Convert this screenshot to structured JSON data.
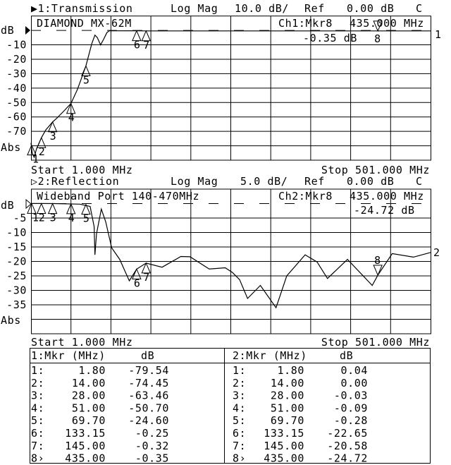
{
  "channel1": {
    "header": {
      "channel": "▶1:Transmission",
      "format": "Log Mag",
      "scale": "10.0 dB/",
      "ref_label": "Ref",
      "ref_value": "0.00 dB",
      "cal": "C"
    },
    "title": "DIAMOND MX-62M",
    "marker_readout": {
      "label": "Ch1:Mkr8",
      "freq": "435.000 MHz",
      "value": "-0.35 dB"
    },
    "y_unit": "dB",
    "y_ticks": [
      "-10",
      "-20",
      "-30",
      "-40",
      "-50",
      "-60",
      "-70"
    ],
    "y_bottom": "Abs",
    "start": "Start 1.000 MHz",
    "stop": "Stop 501.000 MHz",
    "trace_label": "1"
  },
  "channel2": {
    "header": {
      "channel": "▷2:Reflection",
      "format": "Log Mag",
      "scale": "5.0 dB/",
      "ref_label": "Ref",
      "ref_value": "0.00 dB",
      "cal": "C"
    },
    "title": "Wideband Port 140-470MHz",
    "marker_readout": {
      "label": "Ch2:Mkr8",
      "freq": "435.000 MHz",
      "value": "-24.72 dB"
    },
    "y_unit": "dB",
    "y_ticks": [
      "-5",
      "-10",
      "-15",
      "-20",
      "-25",
      "-30",
      "-35"
    ],
    "y_bottom": "Abs",
    "start": "Start 1.000 MHz",
    "stop": "Stop 501.000 MHz",
    "trace_label": "2"
  },
  "marker_table": {
    "left": {
      "header_mkr": "1:Mkr (MHz)",
      "header_db": "dB",
      "rows": [
        [
          "1:",
          "1.80",
          "-79.54"
        ],
        [
          "2:",
          "14.00",
          "-74.45"
        ],
        [
          "3:",
          "28.00",
          "-63.46"
        ],
        [
          "4:",
          "51.00",
          "-50.70"
        ],
        [
          "5:",
          "69.70",
          "-24.60"
        ],
        [
          "6:",
          "133.15",
          "-0.25"
        ],
        [
          "7:",
          "145.00",
          "-0.32"
        ],
        [
          "8›",
          "435.00",
          "-0.35"
        ]
      ]
    },
    "right": {
      "header_mkr": "2:Mkr (MHz)",
      "header_db": "dB",
      "rows": [
        [
          "1:",
          "1.80",
          "0.04"
        ],
        [
          "2:",
          "14.00",
          "0.00"
        ],
        [
          "3:",
          "28.00",
          "-0.03"
        ],
        [
          "4:",
          "51.00",
          "-0.09"
        ],
        [
          "5:",
          "69.70",
          "-0.28"
        ],
        [
          "6:",
          "133.15",
          "-22.65"
        ],
        [
          "7:",
          "145.00",
          "-20.58"
        ],
        [
          "8›",
          "435.00",
          "-24.72"
        ]
      ]
    }
  },
  "chart_data": [
    {
      "type": "line",
      "title": "Transmission",
      "xlabel": "",
      "ylabel": "dB",
      "xlim": [
        1,
        501
      ],
      "ylim": [
        -90,
        10
      ],
      "ref": 0,
      "grid": true,
      "x": [
        1,
        2.5,
        5,
        8,
        12,
        14,
        19.5,
        28,
        33,
        42,
        51,
        59,
        69.7,
        77,
        81,
        84,
        88,
        92,
        96,
        99,
        133.15,
        145,
        435,
        501
      ],
      "y": [
        -78,
        -85,
        -88,
        -82,
        -77,
        -74.5,
        -69,
        -63.5,
        -61,
        -56,
        -50.7,
        -41,
        -24.6,
        -9.3,
        -3.2,
        -5,
        -10,
        -6,
        -1.5,
        -0.3,
        -0.25,
        -0.32,
        -0.35,
        -0.35
      ],
      "markers": [
        {
          "id": "1",
          "x": 1.8,
          "y": -79.54
        },
        {
          "id": "2",
          "x": 14,
          "y": -74.45
        },
        {
          "id": "3",
          "x": 28,
          "y": -63.46
        },
        {
          "id": "4",
          "x": 51,
          "y": -50.7
        },
        {
          "id": "5",
          "x": 69.7,
          "y": -24.6
        },
        {
          "id": "6",
          "x": 133.15,
          "y": -0.25
        },
        {
          "id": "7",
          "x": 145,
          "y": -0.32
        },
        {
          "id": "8",
          "x": 435,
          "y": -0.35,
          "active": true
        }
      ]
    },
    {
      "type": "line",
      "title": "Reflection",
      "xlabel": "",
      "ylabel": "dB",
      "xlim": [
        1,
        501
      ],
      "ylim": [
        -45,
        5
      ],
      "ref": 0,
      "grid": true,
      "x": [
        1,
        30,
        62,
        75,
        80,
        81,
        83,
        89,
        94.5,
        102,
        112,
        124,
        133.15,
        145,
        165,
        188.5,
        200,
        224,
        244,
        253,
        262,
        272,
        288,
        307.6,
        321,
        344,
        359,
        372,
        397,
        428,
        435,
        453,
        479.5,
        501
      ],
      "y": [
        0.04,
        0,
        -0.2,
        -1,
        -8,
        -17.7,
        -10.4,
        -1.9,
        -6.3,
        -15.3,
        -19.3,
        -26.7,
        -22.65,
        -20.58,
        -22,
        -18.3,
        -18.4,
        -22.6,
        -22.2,
        -23.8,
        -26.3,
        -32.8,
        -28.3,
        -36,
        -25,
        -17.7,
        -20.2,
        -25.9,
        -19.3,
        -28.3,
        -24.72,
        -17.3,
        -18.5,
        -16.9
      ],
      "markers": [
        {
          "id": "1",
          "x": 1.8,
          "y": 0.04
        },
        {
          "id": "2",
          "x": 14,
          "y": 0
        },
        {
          "id": "3",
          "x": 28,
          "y": -0.03
        },
        {
          "id": "4",
          "x": 51,
          "y": -0.09
        },
        {
          "id": "5",
          "x": 69.7,
          "y": -0.28
        },
        {
          "id": "6",
          "x": 133.15,
          "y": -22.65
        },
        {
          "id": "7",
          "x": 145,
          "y": -20.58
        },
        {
          "id": "8",
          "x": 435,
          "y": -24.72,
          "active": true
        }
      ]
    }
  ]
}
